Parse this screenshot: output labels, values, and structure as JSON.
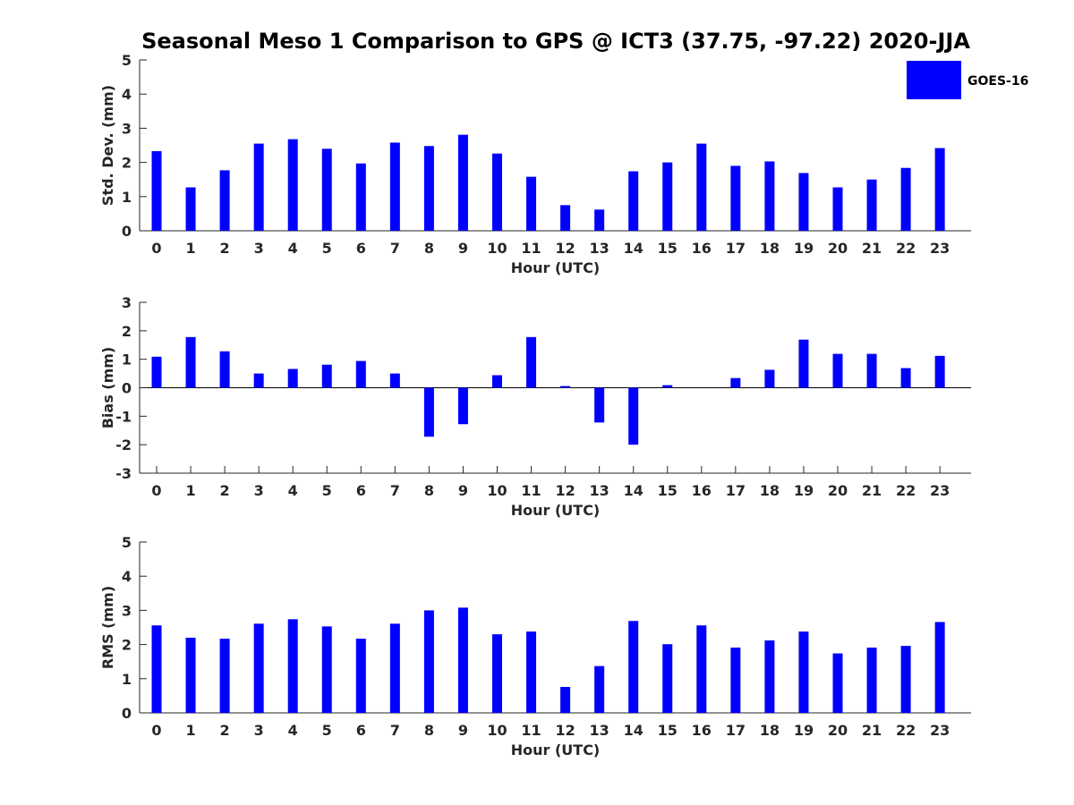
{
  "title": "Seasonal Meso 1 Comparison to GPS @ ICT3 (37.75, -97.22) 2020-JJA",
  "colors": {
    "bar": "#0000ff",
    "axis": "#262626",
    "background": "#ffffff"
  },
  "legend": {
    "label": "GOES-16",
    "placement": "top-right"
  },
  "chart_data": [
    {
      "type": "bar",
      "xlabel": "Hour (UTC)",
      "ylabel": "Std. Dev. (mm)",
      "ylim": [
        0,
        5
      ],
      "yticks": [
        0,
        1,
        2,
        3,
        4,
        5
      ],
      "categories": [
        "0",
        "1",
        "2",
        "3",
        "4",
        "5",
        "6",
        "7",
        "8",
        "9",
        "10",
        "11",
        "12",
        "13",
        "14",
        "15",
        "16",
        "17",
        "18",
        "19",
        "20",
        "21",
        "22",
        "23"
      ],
      "series": [
        {
          "name": "GOES-16",
          "values": [
            2.33,
            1.27,
            1.77,
            2.55,
            2.68,
            2.4,
            1.97,
            2.58,
            2.48,
            2.81,
            2.26,
            1.58,
            0.75,
            0.62,
            1.74,
            2.0,
            2.55,
            1.9,
            2.03,
            1.69,
            1.27,
            1.5,
            1.84,
            2.42
          ]
        }
      ],
      "grid": false
    },
    {
      "type": "bar",
      "xlabel": "Hour (UTC)",
      "ylabel": "Bias (mm)",
      "ylim": [
        -3,
        3
      ],
      "yticks": [
        -3,
        -2,
        -1,
        0,
        1,
        2,
        3
      ],
      "categories": [
        "0",
        "1",
        "2",
        "3",
        "4",
        "5",
        "6",
        "7",
        "8",
        "9",
        "10",
        "11",
        "12",
        "13",
        "14",
        "15",
        "16",
        "17",
        "18",
        "19",
        "20",
        "21",
        "22",
        "23"
      ],
      "series": [
        {
          "name": "GOES-16",
          "values": [
            1.09,
            1.78,
            1.28,
            0.5,
            0.66,
            0.81,
            0.94,
            0.5,
            -1.72,
            -1.28,
            0.44,
            1.78,
            0.06,
            -1.22,
            -2.0,
            0.09,
            0.0,
            0.34,
            0.63,
            1.69,
            1.19,
            1.19,
            0.69,
            1.12
          ]
        }
      ],
      "grid": false
    },
    {
      "type": "bar",
      "xlabel": "Hour (UTC)",
      "ylabel": "RMS (mm)",
      "ylim": [
        0,
        5
      ],
      "yticks": [
        0,
        1,
        2,
        3,
        4,
        5
      ],
      "categories": [
        "0",
        "1",
        "2",
        "3",
        "4",
        "5",
        "6",
        "7",
        "8",
        "9",
        "10",
        "11",
        "12",
        "13",
        "14",
        "15",
        "16",
        "17",
        "18",
        "19",
        "20",
        "21",
        "22",
        "23"
      ],
      "series": [
        {
          "name": "GOES-16",
          "values": [
            2.56,
            2.2,
            2.17,
            2.61,
            2.74,
            2.53,
            2.17,
            2.61,
            3.0,
            3.08,
            2.3,
            2.38,
            0.76,
            1.37,
            2.69,
            2.01,
            2.56,
            1.91,
            2.12,
            2.38,
            1.74,
            1.91,
            1.96,
            2.66
          ]
        }
      ],
      "grid": false
    }
  ]
}
